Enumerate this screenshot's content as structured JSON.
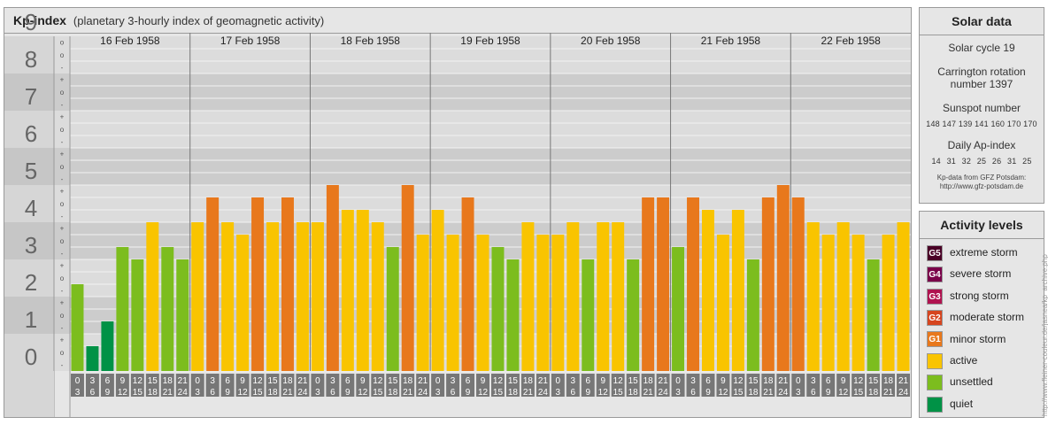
{
  "header": {
    "title": "Kp-index",
    "subtitle": "(planetary 3-hourly index of geomagnetic activity)"
  },
  "chart_data": {
    "type": "bar",
    "ylim": [
      0,
      9
    ],
    "y_ticks": [
      "0",
      "1",
      "2",
      "3",
      "4",
      "5",
      "6",
      "7",
      "8",
      "9"
    ],
    "minor_ticks": [
      "+",
      "o",
      "-"
    ],
    "days": [
      "16 Feb 1958",
      "17 Feb 1958",
      "18 Feb 1958",
      "19 Feb 1958",
      "20 Feb 1958",
      "21 Feb 1958",
      "22 Feb 1958"
    ],
    "interval_starts": [
      "0",
      "3",
      "6",
      "9",
      "12",
      "15",
      "18",
      "21"
    ],
    "interval_ends": [
      "3",
      "6",
      "9",
      "12",
      "15",
      "18",
      "21",
      "24"
    ],
    "values": [
      2.333,
      0.667,
      1.333,
      3.333,
      3.0,
      4.0,
      3.333,
      3.0,
      4.0,
      4.667,
      4.0,
      3.667,
      4.667,
      4.0,
      4.667,
      4.0,
      4.0,
      5.0,
      4.333,
      4.333,
      4.0,
      3.333,
      5.0,
      3.667,
      4.333,
      3.667,
      4.667,
      3.667,
      3.333,
      3.0,
      4.0,
      3.667,
      3.667,
      4.0,
      3.0,
      4.0,
      4.0,
      3.0,
      4.667,
      4.667,
      3.333,
      4.667,
      4.333,
      3.667,
      4.333,
      3.0,
      4.667,
      5.0,
      4.667,
      4.0,
      3.667,
      4.0,
      3.667,
      3.0,
      3.667,
      4.0
    ],
    "level_colors": {
      "quiet": "#009246",
      "unsettled": "#7cbd1e",
      "active": "#f9c400",
      "minor": "#e8781c",
      "moderate": "#d6451f",
      "strong": "#b0124f",
      "severe": "#7a0049",
      "extreme": "#4a0026"
    },
    "grid": true
  },
  "solar": {
    "title": "Solar data",
    "cycle": "Solar cycle 19",
    "carrington_line1": "Carrington rotation",
    "carrington_line2": "number 1397",
    "sunspot_title": "Sunspot number",
    "sunspot_values": "148 147 139 141 160 170 170",
    "ap_title": "Daily Ap-index",
    "ap_values": "14  31  32  25  26  31  25",
    "source_line1": "Kp-data from GFZ Potsdam:",
    "source_line2": "http://www.gfz-potsdam.de"
  },
  "activity": {
    "title": "Activity levels",
    "items": [
      {
        "badge": "G5",
        "label": "extreme storm",
        "color": "#4a0026"
      },
      {
        "badge": "G4",
        "label": "severe storm",
        "color": "#7a0049"
      },
      {
        "badge": "G3",
        "label": "strong storm",
        "color": "#b0124f"
      },
      {
        "badge": "G2",
        "label": "moderate storm",
        "color": "#d6451f"
      },
      {
        "badge": "G1",
        "label": "minor storm",
        "color": "#e8781c"
      },
      {
        "badge": "",
        "label": "active",
        "color": "#f9c400"
      },
      {
        "badge": "",
        "label": "unsettled",
        "color": "#7cbd1e"
      },
      {
        "badge": "",
        "label": "quiet",
        "color": "#009246"
      }
    ]
  },
  "credit": "http://www.fleiner-couleur.de/jasnea/kp_archive.php"
}
